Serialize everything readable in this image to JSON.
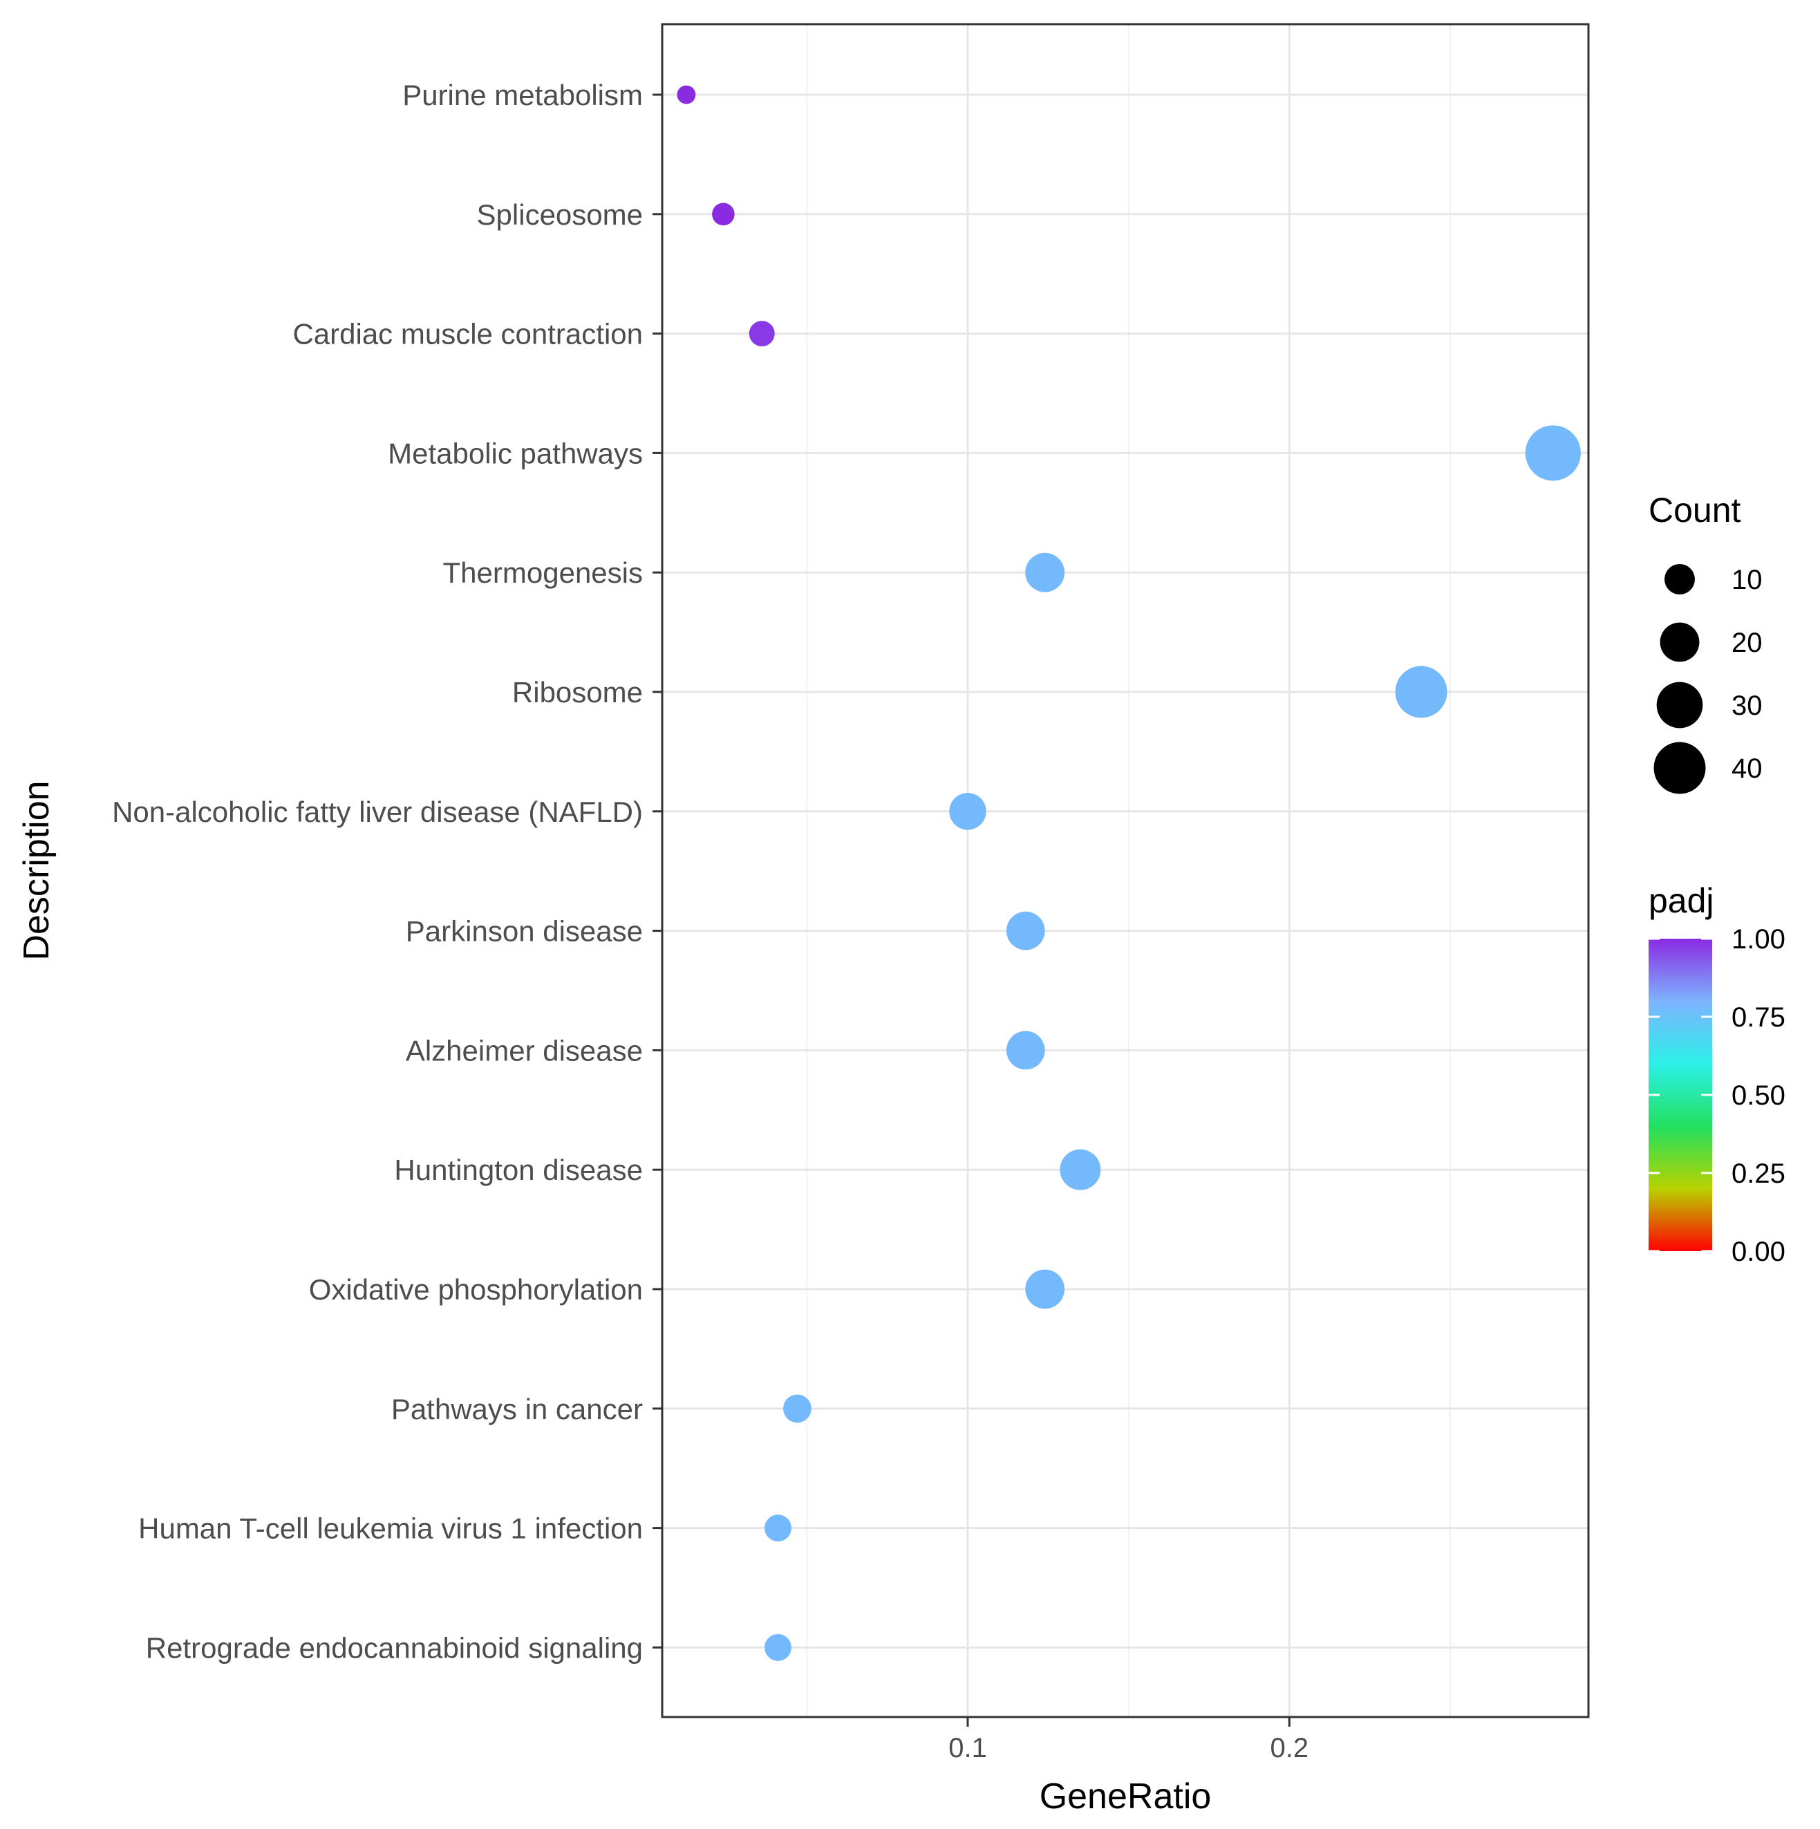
{
  "chart_data": {
    "type": "scatter",
    "xlabel": "GeneRatio",
    "ylabel": "Description",
    "xlim": [
      0.005,
      0.293
    ],
    "x_ticks": [
      0.1,
      0.2
    ],
    "x_tick_labels": [
      "0.1",
      "0.2"
    ],
    "x_minor_gridlines": [
      0.05,
      0.15,
      0.25
    ],
    "grid": true,
    "categories": [
      "Purine metabolism",
      "Spliceosome",
      "Cardiac muscle contraction",
      "Metabolic pathways",
      "Thermogenesis",
      "Ribosome",
      "Non-alcoholic fatty liver disease (NAFLD)",
      "Parkinson disease",
      "Alzheimer disease",
      "Huntington disease",
      "Oxidative phosphorylation",
      "Pathways in cancer",
      "Human T-cell leukemia virus 1 infection",
      "Retrograde endocannabinoid signaling"
    ],
    "points": [
      {
        "y": "Purine metabolism",
        "x": 0.0125,
        "count": 2,
        "padj": 1.0
      },
      {
        "y": "Spliceosome",
        "x": 0.024,
        "count": 4,
        "padj": 1.0
      },
      {
        "y": "Cardiac muscle contraction",
        "x": 0.036,
        "count": 6,
        "padj": 0.98
      },
      {
        "y": "Metabolic pathways",
        "x": 0.282,
        "count": 47,
        "padj": 0.78
      },
      {
        "y": "Thermogenesis",
        "x": 0.124,
        "count": 20,
        "padj": 0.78
      },
      {
        "y": "Ribosome",
        "x": 0.241,
        "count": 40,
        "padj": 0.78
      },
      {
        "y": "Non-alcoholic fatty liver disease (NAFLD)",
        "x": 0.1,
        "count": 17,
        "padj": 0.78
      },
      {
        "y": "Parkinson disease",
        "x": 0.118,
        "count": 19,
        "padj": 0.78
      },
      {
        "y": "Alzheimer disease",
        "x": 0.118,
        "count": 19,
        "padj": 0.78
      },
      {
        "y": "Huntington disease",
        "x": 0.135,
        "count": 22,
        "padj": 0.78
      },
      {
        "y": "Oxidative phosphorylation",
        "x": 0.124,
        "count": 20,
        "padj": 0.78
      },
      {
        "y": "Pathways in cancer",
        "x": 0.047,
        "count": 8,
        "padj": 0.78
      },
      {
        "y": "Human T-cell leukemia virus 1 infection",
        "x": 0.041,
        "count": 7,
        "padj": 0.78
      },
      {
        "y": "Retrograde endocannabinoid signaling",
        "x": 0.041,
        "count": 7,
        "padj": 0.78
      }
    ],
    "size_legend": {
      "title": "Count",
      "values": [
        10,
        20,
        30,
        40
      ],
      "labels": [
        "10",
        "20",
        "30",
        "40"
      ]
    },
    "color_legend": {
      "title": "padj",
      "range": [
        0,
        1
      ],
      "ticks": [
        1.0,
        0.75,
        0.5,
        0.25,
        0.0
      ],
      "tick_labels": [
        "1.00",
        "0.75",
        "0.50",
        "0.25",
        "0.00"
      ],
      "color_stops": [
        "#ff0000",
        "#b8d200",
        "#22e060",
        "#2cf0e8",
        "#7db3ff",
        "#8a2be2"
      ]
    },
    "legend_placement": "right"
  }
}
